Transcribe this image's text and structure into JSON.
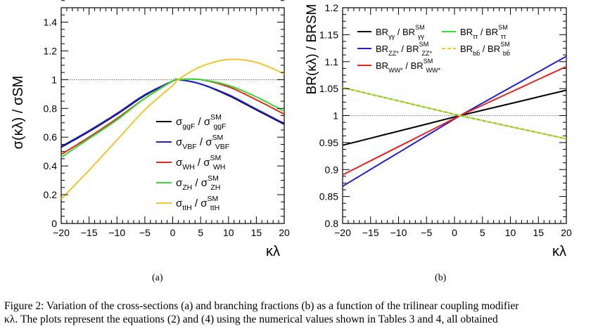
{
  "figure": {
    "caption_line1": "Figure 2: Variation of the cross-sections (a) and branching fractions (b) as a function of the trilinear coupling modifier",
    "caption_line2": "κλ. The plots represent the equations (2) and (4) using the numerical values shown in Tables 3 and 4, all obtained",
    "panel_a_label": "(a)",
    "panel_b_label": "(b)"
  },
  "colors": {
    "black": "#000000",
    "blue": "#1f1fd6",
    "red": "#e8241c",
    "green": "#33dd33",
    "yellow": "#f2c530"
  },
  "chart_data": [
    {
      "type": "line",
      "ylabel": "σ(κλ) / σSM",
      "xlabel": "κλ",
      "xlim": [
        -20,
        20
      ],
      "ylim": [
        0,
        1.5
      ],
      "x_ticks": [
        "−20",
        "−15",
        "−10",
        "−5",
        "0",
        "5",
        "10",
        "15",
        "20"
      ],
      "y_ticks": [
        "0",
        "0.2",
        "0.4",
        "0.6",
        "0.8",
        "1",
        "1.2",
        "1.4"
      ],
      "reference_line": 1,
      "legend_position": "center-right",
      "x": [
        -20,
        -15,
        -10,
        -5,
        0,
        1,
        5,
        10,
        15,
        20
      ],
      "series": [
        {
          "name": "σggF / σSMggF",
          "color": "#000000",
          "values": [
            0.53,
            0.64,
            0.76,
            0.89,
            0.99,
            1.0,
            0.97,
            0.89,
            0.79,
            0.69
          ]
        },
        {
          "name": "σVBF / σSMVBF",
          "color": "#1f1fd6",
          "values": [
            0.535,
            0.645,
            0.765,
            0.895,
            0.99,
            1.0,
            0.97,
            0.895,
            0.795,
            0.695
          ]
        },
        {
          "name": "σWH / σSMWH",
          "color": "#e8241c",
          "values": [
            0.48,
            0.6,
            0.73,
            0.87,
            0.99,
            1.0,
            1.0,
            0.95,
            0.86,
            0.76
          ]
        },
        {
          "name": "σZH / σSMZH",
          "color": "#33dd33",
          "values": [
            0.46,
            0.59,
            0.72,
            0.87,
            0.99,
            1.0,
            1.0,
            0.96,
            0.88,
            0.78
          ]
        },
        {
          "name": "σttH / σSMttH",
          "color": "#f2c530",
          "values": [
            0.17,
            0.37,
            0.58,
            0.79,
            0.96,
            1.0,
            1.09,
            1.14,
            1.12,
            1.04
          ]
        }
      ],
      "legend": [
        {
          "main": "σ",
          "sub": "ggF",
          "sep": " / ",
          "main2": "σ",
          "sup2": "SM",
          "sub2": "ggF"
        },
        {
          "main": "σ",
          "sub": "VBF",
          "sep": " / ",
          "main2": "σ",
          "sup2": "SM",
          "sub2": "VBF"
        },
        {
          "main": "σ",
          "sub": "WH",
          "sep": " / ",
          "main2": "σ",
          "sup2": "SM",
          "sub2": "WH"
        },
        {
          "main": "σ",
          "sub": "ZH",
          "sep": " / ",
          "main2": "σ",
          "sup2": "SM",
          "sub2": "ZH"
        },
        {
          "main": "σ",
          "sub": "ttH",
          "sep": " / ",
          "main2": "σ",
          "sup2": "SM",
          "sub2": "ttH"
        }
      ]
    },
    {
      "type": "line",
      "ylabel": "BR(κλ) / BRSM",
      "xlabel": "κλ",
      "xlim": [
        -20,
        20
      ],
      "ylim": [
        0.8,
        1.2
      ],
      "x_ticks": [
        "−20",
        "−15",
        "−10",
        "−5",
        "0",
        "5",
        "10",
        "15",
        "20"
      ],
      "y_ticks": [
        "0.8",
        "0.85",
        "0.9",
        "0.95",
        "1",
        "1.05",
        "1.1",
        "1.15",
        "1.2"
      ],
      "reference_line": 1,
      "legend_position": "top-left",
      "x": [
        -20,
        1,
        20
      ],
      "series": [
        {
          "name": "BRγγ / BRSMγγ",
          "color": "#000000",
          "values": [
            0.945,
            1.0,
            1.047
          ],
          "dashed": false
        },
        {
          "name": "BRZZ* / BRSMZZ*",
          "color": "#1f1fd6",
          "values": [
            0.869,
            1.0,
            1.11
          ],
          "dashed": false
        },
        {
          "name": "BRWW* / BRSMWW*",
          "color": "#e8241c",
          "values": [
            0.89,
            1.0,
            1.091
          ],
          "dashed": false
        },
        {
          "name": "BRττ / BRSMττ",
          "color": "#33dd33",
          "values": [
            1.052,
            1.0,
            0.957
          ],
          "dashed": false
        },
        {
          "name": "BRbb̄ / BRSMbb̄",
          "color": "#f2c530",
          "values": [
            1.052,
            1.0,
            0.957
          ],
          "dashed": true
        }
      ],
      "legend": [
        {
          "main": "BR",
          "sub": "γγ",
          "sep": " / ",
          "main2": "BR",
          "sup2": "SM",
          "sub2": "γγ"
        },
        {
          "main": "BR",
          "sub": "ττ",
          "sep": " / ",
          "main2": "BR",
          "sup2": "SM",
          "sub2": "ττ"
        },
        {
          "main": "BR",
          "sub": "ZZ*",
          "sep": " / ",
          "main2": "BR",
          "sup2": "SM",
          "sub2": "ZZ*"
        },
        {
          "main": "BR",
          "sub": "bb̄",
          "sep": " / ",
          "main2": "BR",
          "sup2": "SM",
          "sub2": "bb̄"
        },
        {
          "main": "BR",
          "sub": "WW*",
          "sep": " / ",
          "main2": "BR",
          "sup2": "SM",
          "sub2": "WW*"
        }
      ]
    }
  ]
}
